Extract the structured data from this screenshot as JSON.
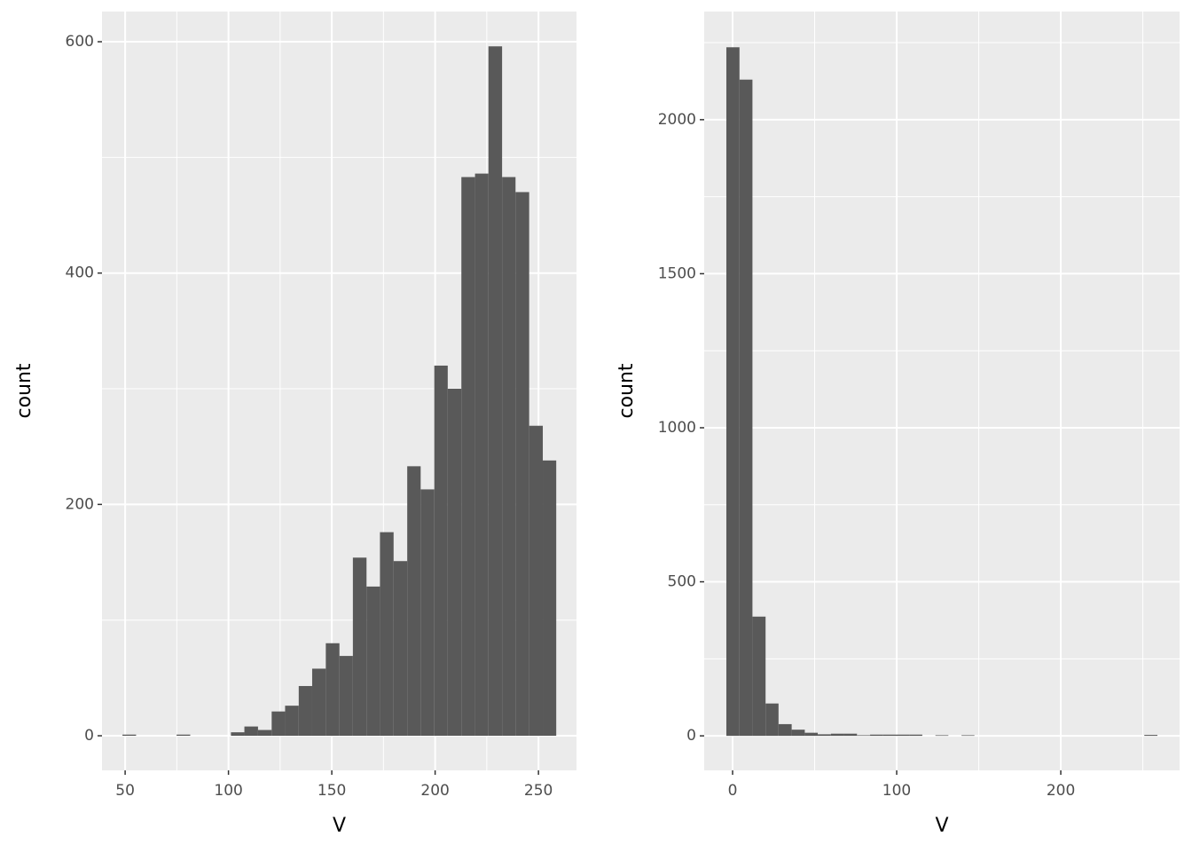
{
  "chart_data": [
    {
      "type": "histogram",
      "xlabel": "V",
      "ylabel": "count",
      "color": "#595959",
      "bins": [
        48.7,
        55.3,
        61.8,
        68.4,
        74.9,
        81.5,
        88.1,
        94.6,
        101.2,
        107.7,
        114.3,
        120.9,
        127.4,
        134.0,
        140.5,
        147.1,
        153.7,
        160.2,
        166.8,
        173.3,
        179.9,
        186.5,
        193.0,
        199.6,
        206.1,
        212.7,
        219.3,
        225.8,
        232.4,
        238.9,
        245.5,
        252.1,
        258.6
      ],
      "values": [
        1,
        0,
        0,
        0,
        1,
        0,
        0,
        0,
        3,
        8,
        5,
        21,
        26,
        43,
        58,
        80,
        69,
        154,
        129,
        176,
        151,
        233,
        213,
        320,
        300,
        483,
        486,
        596,
        483,
        470,
        268,
        238
      ],
      "xlim": [
        38.8,
        268.4
      ],
      "ylim": [
        -29.9,
        626.1
      ],
      "xticks": [
        50,
        100,
        150,
        200,
        250
      ],
      "yticks": [
        0,
        200,
        400,
        600
      ],
      "xminor": [
        75,
        125,
        175,
        225
      ],
      "yminor": [
        100,
        300,
        500
      ],
      "grid": true
    },
    {
      "type": "histogram",
      "xlabel": "V",
      "ylabel": "count",
      "color": "#595959",
      "bins": [
        -3.8,
        4.2,
        12.1,
        20.1,
        28.0,
        36.0,
        44.0,
        51.9,
        59.9,
        67.8,
        75.8,
        83.8,
        91.7,
        99.7,
        107.6,
        115.6,
        123.6,
        131.5,
        139.5,
        147.4,
        155.4,
        163.4,
        171.3,
        179.3,
        187.2,
        195.2,
        203.2,
        211.1,
        219.1,
        227.0,
        235.0,
        243.0,
        250.9,
        258.9
      ],
      "values": [
        2235,
        2130,
        387,
        105,
        38,
        20,
        10,
        5,
        7,
        7,
        2,
        4,
        4,
        4,
        4,
        0,
        2,
        0,
        2,
        0,
        0,
        0,
        0,
        0,
        0,
        0,
        0,
        0,
        0,
        0,
        0,
        0,
        3
      ],
      "xlim": [
        -17.3,
        272.4
      ],
      "ylim": [
        -112,
        2351
      ],
      "xticks": [
        0,
        100,
        200
      ],
      "yticks": [
        0,
        500,
        1000,
        1500,
        2000
      ],
      "xminor": [
        50,
        150,
        250
      ],
      "yminor": [
        250,
        750,
        1250,
        1750,
        2250
      ],
      "grid": true
    }
  ]
}
